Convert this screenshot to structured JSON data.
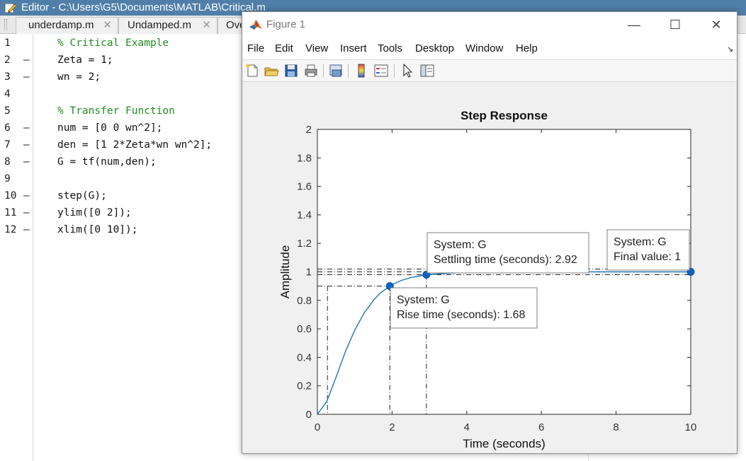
{
  "editor": {
    "title": "Editor - C:\\Users\\G5\\Documents\\MATLAB\\Critical.m",
    "tabs": [
      {
        "label": "underdamp.m",
        "close": "✕"
      },
      {
        "label": "Undamped.m",
        "close": "✕"
      },
      {
        "label": "Ove",
        "close": ""
      }
    ],
    "lines": [
      {
        "num": "1",
        "dash": "",
        "text": "% Critical Example",
        "comment": true
      },
      {
        "num": "2",
        "dash": "–",
        "text": "Zeta = 1;",
        "comment": false
      },
      {
        "num": "3",
        "dash": "–",
        "text": "wn = 2;",
        "comment": false
      },
      {
        "num": "4",
        "dash": "",
        "text": "",
        "comment": false
      },
      {
        "num": "5",
        "dash": "",
        "text": "% Transfer Function",
        "comment": true
      },
      {
        "num": "6",
        "dash": "–",
        "text": "num = [0 0 wn^2];",
        "comment": false
      },
      {
        "num": "7",
        "dash": "–",
        "text": "den = [1 2*Zeta*wn wn^2];",
        "comment": false
      },
      {
        "num": "8",
        "dash": "–",
        "text": "G = tf(num,den);",
        "comment": false
      },
      {
        "num": "9",
        "dash": "",
        "text": "",
        "comment": false
      },
      {
        "num": "10",
        "dash": "–",
        "text": "step(G);",
        "comment": false
      },
      {
        "num": "11",
        "dash": "–",
        "text": "ylim([0 2]);",
        "comment": false
      },
      {
        "num": "12",
        "dash": "–",
        "text": "xlim([0 10]);",
        "comment": false
      }
    ]
  },
  "figure": {
    "title": "Figure 1",
    "window_buttons": {
      "minimize": "—",
      "maximize": "☐",
      "close": "✕"
    },
    "menu": [
      "File",
      "Edit",
      "View",
      "Insert",
      "Tools",
      "Desktop",
      "Window",
      "Help"
    ],
    "dock_arrow": "↘",
    "toolbar": [
      "new-figure",
      "open-file",
      "save",
      "print",
      "link-plot",
      "colorbar",
      "legend",
      "edit-plot-pointer",
      "property-editor"
    ]
  },
  "chart_data": {
    "type": "line",
    "title": "Step Response",
    "xlabel": "Time (seconds)",
    "ylabel": "Amplitude",
    "xlim": [
      0,
      10
    ],
    "ylim": [
      0,
      2
    ],
    "xticks": [
      0,
      2,
      4,
      6,
      8,
      10
    ],
    "yticks": [
      0,
      0.2,
      0.4,
      0.6,
      0.8,
      1,
      1.2,
      1.4,
      1.6,
      1.8,
      2
    ],
    "ytick_labels": [
      "0",
      "0.2",
      "0.4",
      "0.6",
      "0.8",
      "1",
      "1.2",
      "1.4",
      "1.6",
      "1.8",
      "2"
    ],
    "grid": false,
    "series": [
      {
        "color": "#1f77b4",
        "x": [
          0,
          0.25,
          0.5,
          0.75,
          1,
          1.25,
          1.5,
          1.68,
          2,
          2.25,
          2.5,
          2.92,
          3.5,
          4,
          5,
          6,
          7,
          8,
          9,
          10
        ],
        "y": [
          0,
          0.09,
          0.26,
          0.44,
          0.59,
          0.71,
          0.8,
          0.85,
          0.91,
          0.94,
          0.96,
          0.98,
          0.99,
          0.997,
          0.9995,
          1,
          1,
          1,
          1,
          1
        ]
      }
    ],
    "annotations": [
      {
        "system_line": "System: G",
        "value_line": "Rise time (seconds): 1.68",
        "x": 1.94,
        "y": 0.9
      },
      {
        "system_line": "System: G",
        "value_line": "Settling time (seconds): 2.92",
        "x": 2.92,
        "y": 0.98
      },
      {
        "system_line": "System: G",
        "value_line": "Final value: 1",
        "x": 10,
        "y": 1
      }
    ],
    "reference_lines": {
      "rise_start_x": 0.27,
      "rise_end_x": 1.94,
      "settling_x": 2.92,
      "levels": [
        0.9,
        0.98,
        1,
        1.02
      ]
    }
  }
}
